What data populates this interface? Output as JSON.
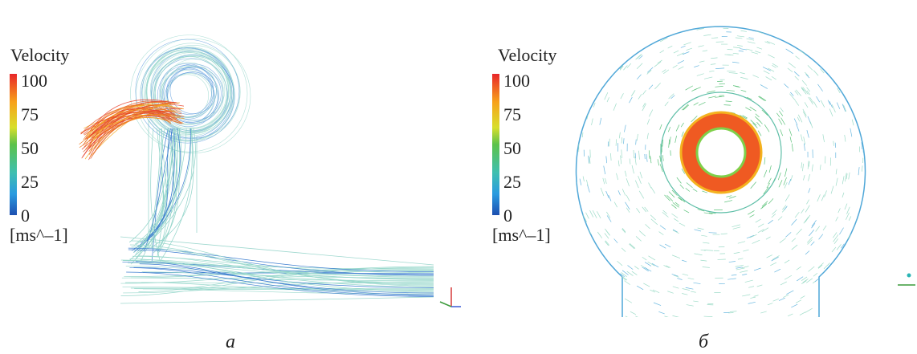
{
  "panels": [
    {
      "legend": {
        "title": "Velocity",
        "ticks": [
          "100",
          "75",
          "50",
          "25",
          "0"
        ],
        "unit": "[ms^–1]"
      },
      "caption": "а"
    },
    {
      "legend": {
        "title": "Velocity",
        "ticks": [
          "100",
          "75",
          "50",
          "25",
          "0"
        ],
        "unit": "[ms^–1]"
      },
      "caption": "б"
    }
  ]
}
